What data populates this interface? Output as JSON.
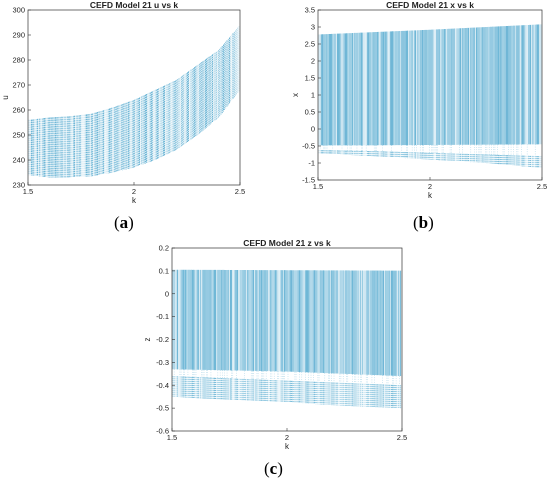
{
  "captions": {
    "a_letter": "a",
    "b_letter": "b",
    "c_letter": "c"
  },
  "chart_data": [
    {
      "type": "scatter",
      "title": "CEFD Model 21 u vs k",
      "xlabel": "k",
      "ylabel": "u",
      "xlim": [
        1.5,
        2.5
      ],
      "ylim": [
        230,
        300
      ],
      "xticks": [
        1.5,
        2,
        2.5
      ],
      "yticks": [
        230,
        240,
        250,
        260,
        270,
        280,
        290,
        300
      ],
      "grid": false,
      "color": "#1f8fc0",
      "band": {
        "k": [
          1.5,
          1.6,
          1.7,
          1.8,
          1.9,
          2.0,
          2.1,
          2.2,
          2.3,
          2.4,
          2.5
        ],
        "upper": [
          256,
          257,
          257.5,
          258.5,
          261,
          264,
          268,
          272,
          278,
          284,
          294
        ],
        "lower": [
          234,
          233,
          233,
          233.5,
          235,
          237,
          240,
          244,
          250,
          257,
          268
        ]
      }
    },
    {
      "type": "scatter",
      "title": "CEFD Model 21 x vs k",
      "xlabel": "k",
      "ylabel": "x",
      "xlim": [
        1.5,
        2.5
      ],
      "ylim": [
        -1.5,
        3.5
      ],
      "xticks": [
        1.5,
        2,
        2.5
      ],
      "yticks": [
        -1.5,
        -1,
        -0.5,
        0,
        0.5,
        1,
        1.5,
        2,
        2.5,
        3,
        3.5
      ],
      "grid": false,
      "color": "#1f8fc0",
      "band": {
        "k": [
          1.5,
          1.75,
          2.0,
          2.25,
          2.5
        ],
        "upper": [
          2.78,
          2.85,
          2.92,
          3.0,
          3.08
        ],
        "lower": [
          -0.72,
          -0.8,
          -0.9,
          -1.0,
          -1.15
        ],
        "gap_top": [
          -0.48,
          -0.48,
          -0.47,
          -0.46,
          -0.45
        ],
        "gap_bottom": [
          -0.62,
          -0.65,
          -0.7,
          -0.75,
          -0.8
        ]
      }
    },
    {
      "type": "scatter",
      "title": "CEFD Model 21 z vs k",
      "xlabel": "k",
      "ylabel": "z",
      "xlim": [
        1.5,
        2.5
      ],
      "ylim": [
        -0.6,
        0.2
      ],
      "xticks": [
        1.5,
        2,
        2.5
      ],
      "yticks": [
        -0.6,
        -0.5,
        -0.4,
        -0.3,
        -0.2,
        -0.1,
        0,
        0.1,
        0.2
      ],
      "grid": false,
      "color": "#1f8fc0",
      "band": {
        "k": [
          1.5,
          1.75,
          2.0,
          2.25,
          2.5
        ],
        "upper": [
          0.105,
          0.104,
          0.103,
          0.102,
          0.101
        ],
        "lower": [
          -0.45,
          -0.465,
          -0.475,
          -0.49,
          -0.5
        ],
        "gap_top": [
          -0.33,
          -0.335,
          -0.34,
          -0.35,
          -0.36
        ],
        "gap_bottom": [
          -0.36,
          -0.37,
          -0.38,
          -0.39,
          -0.4
        ]
      }
    }
  ]
}
